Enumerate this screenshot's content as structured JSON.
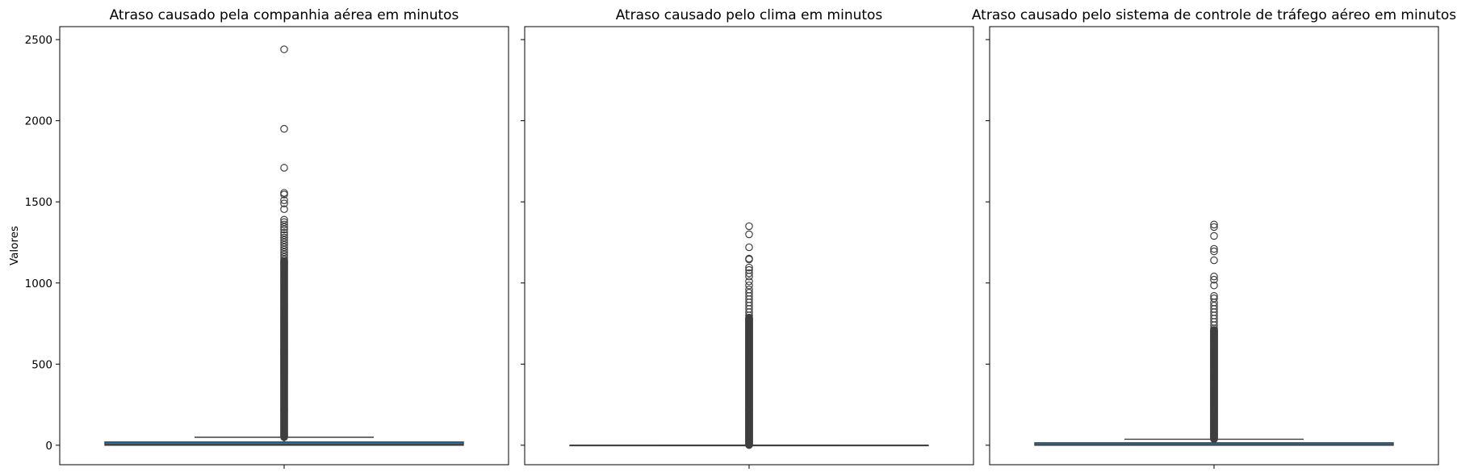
{
  "chart_data": [
    {
      "type": "box",
      "title": "Atraso causado pela companhia aérea em minutos",
      "ylabel": "Valores",
      "ylim": [
        -120,
        2580
      ],
      "yticks": [
        0,
        500,
        1000,
        1500,
        2000,
        2500
      ],
      "box": {
        "q1": 0,
        "median": 5,
        "q3": 20,
        "whisker_low": 0,
        "whisker_high": 49
      },
      "outliers": [
        2440,
        1950,
        1710,
        1555,
        1545,
        1510,
        1490,
        1455,
        1390,
        1375,
        1360,
        1345,
        1330,
        1310,
        1295,
        1280,
        1265,
        1250,
        1235,
        1220,
        1205,
        1190,
        1175,
        1160,
        1145
      ],
      "outlier_dense_range": [
        50,
        1140
      ],
      "color": "#1f77b4"
    },
    {
      "type": "box",
      "title": "Atraso causado pelo clima em minutos",
      "ylabel": "",
      "ylim": [
        -120,
        2580
      ],
      "yticks": [
        0,
        500,
        1000,
        1500,
        2000,
        2500
      ],
      "box": {
        "q1": 0,
        "median": 0,
        "q3": 0,
        "whisker_low": 0,
        "whisker_high": 0
      },
      "outliers": [
        1350,
        1300,
        1220,
        1150,
        1145,
        1095,
        1080,
        1060,
        1040,
        1010,
        985,
        960,
        940,
        920,
        900,
        880,
        860,
        840,
        820,
        800
      ],
      "outlier_dense_range": [
        1,
        790
      ],
      "color": "#1f77b4"
    },
    {
      "type": "box",
      "title": "Atraso causado pelo sistema de controle de tráfego aéreo em minutos",
      "ylabel": "",
      "ylim": [
        -120,
        2580
      ],
      "yticks": [
        0,
        500,
        1000,
        1500,
        2000,
        2500
      ],
      "box": {
        "q1": 0,
        "median": 2,
        "q3": 15,
        "whisker_low": 0,
        "whisker_high": 37
      },
      "outliers": [
        1360,
        1345,
        1290,
        1210,
        1195,
        1140,
        1040,
        1020,
        985,
        920,
        905,
        880,
        860,
        840,
        820,
        800,
        780,
        760,
        740,
        720
      ],
      "outlier_dense_range": [
        38,
        710
      ],
      "color": "#1f77b4"
    }
  ]
}
